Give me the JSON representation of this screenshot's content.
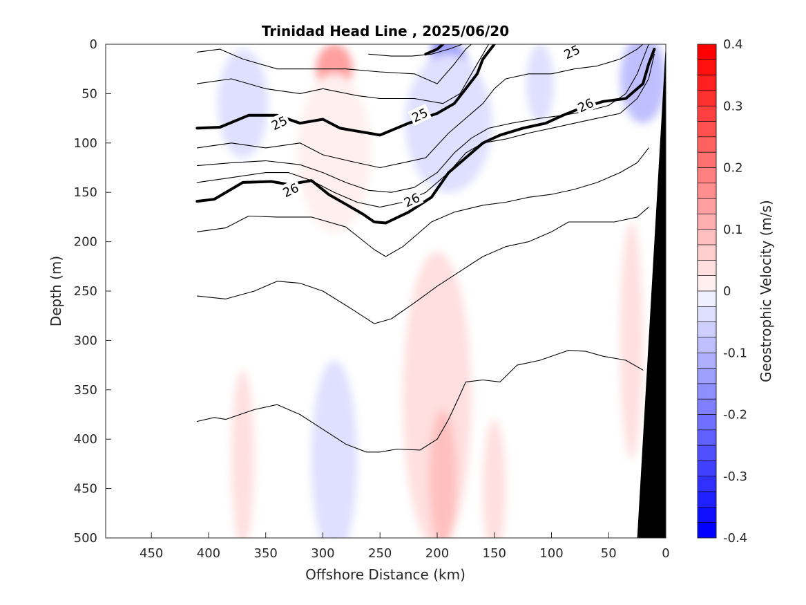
{
  "chart_data": {
    "type": "contour",
    "title": "Trinidad Head Line , 2025/06/20",
    "xlabel": "Offshore Distance (km)",
    "ylabel": "Depth (m)",
    "xlim": [
      490,
      0
    ],
    "ylim": [
      0,
      500
    ],
    "x_reversed": true,
    "y_reversed": true,
    "xticks": [
      450,
      400,
      350,
      300,
      250,
      200,
      150,
      100,
      50,
      0
    ],
    "yticks": [
      0,
      50,
      100,
      150,
      200,
      250,
      300,
      350,
      400,
      450,
      500
    ],
    "colorbar": {
      "label": "Geostrophic Velocity (m/s)",
      "range": [
        -0.4,
        0.4
      ],
      "step": 0.025,
      "ticks": [
        0.4,
        0.3,
        0.2,
        0.1,
        0,
        -0.1,
        -0.2,
        -0.3,
        -0.4
      ],
      "positive_color": "#ff0000",
      "negative_color": "#0000ff"
    },
    "velocity_patches": [
      {
        "x": 290,
        "z": 25,
        "rx": 16,
        "rz": 25,
        "v": 0.14
      },
      {
        "x": 290,
        "z": 90,
        "rx": 26,
        "rz": 55,
        "v": 0.06
      },
      {
        "x": 290,
        "z": 110,
        "rx": 32,
        "rz": 80,
        "v": 0.025
      },
      {
        "x": 195,
        "z": 15,
        "rx": 10,
        "rz": 25,
        "v": -0.32
      },
      {
        "x": 190,
        "z": 50,
        "rx": 22,
        "rz": 55,
        "v": -0.15
      },
      {
        "x": 190,
        "z": 80,
        "rx": 38,
        "rz": 70,
        "v": -0.05
      },
      {
        "x": 370,
        "z": 60,
        "rx": 22,
        "rz": 55,
        "v": -0.04
      },
      {
        "x": 110,
        "z": 40,
        "rx": 12,
        "rz": 40,
        "v": -0.05
      },
      {
        "x": 20,
        "z": 35,
        "rx": 20,
        "rz": 45,
        "v": -0.08
      },
      {
        "x": 200,
        "z": 360,
        "rx": 30,
        "rz": 150,
        "v": 0.03
      },
      {
        "x": 195,
        "z": 440,
        "rx": 12,
        "rz": 70,
        "v": 0.08
      },
      {
        "x": 290,
        "z": 420,
        "rx": 20,
        "rz": 100,
        "v": -0.04
      },
      {
        "x": 150,
        "z": 450,
        "rx": 10,
        "rz": 70,
        "v": 0.04
      },
      {
        "x": 370,
        "z": 420,
        "rx": 10,
        "rz": 90,
        "v": 0.03
      },
      {
        "x": 30,
        "z": 300,
        "rx": 10,
        "rz": 120,
        "v": 0.03
      }
    ],
    "density_contours": [
      {
        "level": 24.5,
        "bold": false,
        "label": "",
        "points": [
          [
            178,
            0
          ],
          [
            190,
            5
          ],
          [
            205,
            10
          ],
          [
            222,
            12
          ],
          [
            240,
            12
          ],
          [
            260,
            10
          ]
        ]
      },
      {
        "level": 25,
        "bold": true,
        "label": "25",
        "points": [
          [
            195,
            0
          ],
          [
            200,
            5
          ],
          [
            210,
            10
          ]
        ]
      },
      {
        "level": 24.75,
        "bold": false,
        "label": "",
        "points": [
          [
            410,
            8
          ],
          [
            390,
            5
          ],
          [
            370,
            15
          ],
          [
            340,
            25
          ],
          [
            310,
            25
          ],
          [
            280,
            25
          ],
          [
            250,
            28
          ],
          [
            220,
            30
          ],
          [
            200,
            40
          ],
          [
            185,
            20
          ],
          [
            175,
            5
          ],
          [
            170,
            0
          ]
        ]
      },
      {
        "level": 24.9,
        "bold": false,
        "label": "",
        "points": [
          [
            410,
            40
          ],
          [
            380,
            35
          ],
          [
            350,
            45
          ],
          [
            320,
            50
          ],
          [
            300,
            45
          ],
          [
            270,
            52
          ],
          [
            250,
            55
          ],
          [
            220,
            55
          ],
          [
            195,
            60
          ],
          [
            180,
            50
          ],
          [
            170,
            30
          ],
          [
            160,
            10
          ],
          [
            155,
            0
          ]
        ]
      },
      {
        "level": 25,
        "bold": true,
        "label": "25",
        "points": [
          [
            410,
            85
          ],
          [
            390,
            84
          ],
          [
            365,
            72
          ],
          [
            340,
            72
          ],
          [
            320,
            80
          ],
          [
            300,
            76
          ],
          [
            285,
            85
          ],
          [
            270,
            88
          ],
          [
            250,
            92
          ],
          [
            225,
            80
          ],
          [
            200,
            70
          ],
          [
            185,
            60
          ],
          [
            175,
            45
          ],
          [
            165,
            30
          ],
          [
            160,
            15
          ],
          [
            150,
            0
          ]
        ]
      },
      {
        "level": 25.25,
        "bold": false,
        "label": "",
        "points": [
          [
            410,
            105
          ],
          [
            380,
            100
          ],
          [
            350,
            105
          ],
          [
            320,
            100
          ],
          [
            300,
            112
          ],
          [
            270,
            120
          ],
          [
            250,
            125
          ],
          [
            230,
            120
          ],
          [
            210,
            115
          ],
          [
            190,
            90
          ],
          [
            175,
            75
          ],
          [
            160,
            60
          ],
          [
            150,
            45
          ],
          [
            140,
            35
          ],
          [
            120,
            30
          ],
          [
            100,
            30
          ],
          [
            80,
            25
          ],
          [
            60,
            22
          ],
          [
            40,
            15
          ],
          [
            25,
            5
          ],
          [
            20,
            0
          ]
        ]
      },
      {
        "level": 25.5,
        "bold": false,
        "label": "",
        "points": [
          [
            410,
            123
          ],
          [
            380,
            120
          ],
          [
            350,
            118
          ],
          [
            320,
            122
          ],
          [
            300,
            130
          ],
          [
            280,
            140
          ],
          [
            260,
            148
          ],
          [
            240,
            150
          ],
          [
            220,
            145
          ],
          [
            200,
            130
          ],
          [
            185,
            110
          ],
          [
            170,
            95
          ],
          [
            155,
            85
          ],
          [
            135,
            80
          ],
          [
            110,
            75
          ],
          [
            90,
            72
          ],
          [
            70,
            68
          ],
          [
            50,
            62
          ],
          [
            35,
            50
          ],
          [
            25,
            30
          ],
          [
            20,
            15
          ],
          [
            15,
            0
          ]
        ]
      },
      {
        "level": 25.75,
        "bold": false,
        "label": "",
        "points": [
          [
            410,
            140
          ],
          [
            380,
            135
          ],
          [
            350,
            130
          ],
          [
            330,
            130
          ],
          [
            310,
            138
          ],
          [
            290,
            150
          ],
          [
            270,
            160
          ],
          [
            250,
            165
          ],
          [
            230,
            160
          ],
          [
            210,
            150
          ],
          [
            190,
            130
          ],
          [
            175,
            110
          ],
          [
            160,
            100
          ],
          [
            140,
            96
          ],
          [
            120,
            90
          ],
          [
            100,
            85
          ],
          [
            80,
            80
          ],
          [
            60,
            75
          ],
          [
            40,
            70
          ],
          [
            25,
            55
          ],
          [
            15,
            35
          ],
          [
            10,
            10
          ]
        ]
      },
      {
        "level": 26,
        "bold": true,
        "label": "26",
        "points": [
          [
            410,
            159
          ],
          [
            395,
            157
          ],
          [
            370,
            140
          ],
          [
            345,
            139
          ],
          [
            330,
            142
          ],
          [
            310,
            138
          ],
          [
            295,
            152
          ],
          [
            280,
            162
          ],
          [
            265,
            172
          ],
          [
            255,
            180
          ],
          [
            245,
            181
          ],
          [
            225,
            170
          ],
          [
            205,
            155
          ],
          [
            190,
            130
          ],
          [
            175,
            115
          ],
          [
            160,
            100
          ],
          [
            145,
            92
          ],
          [
            125,
            85
          ],
          [
            105,
            80
          ],
          [
            90,
            72
          ],
          [
            75,
            65
          ],
          [
            55,
            58
          ],
          [
            35,
            55
          ],
          [
            20,
            40
          ],
          [
            15,
            20
          ],
          [
            10,
            5
          ]
        ]
      },
      {
        "level": 26.25,
        "bold": false,
        "label": "",
        "points": [
          [
            410,
            190
          ],
          [
            385,
            186
          ],
          [
            365,
            174
          ],
          [
            340,
            175
          ],
          [
            310,
            175
          ],
          [
            280,
            185
          ],
          [
            255,
            208
          ],
          [
            245,
            215
          ],
          [
            230,
            205
          ],
          [
            220,
            195
          ],
          [
            205,
            180
          ],
          [
            185,
            170
          ],
          [
            160,
            163
          ],
          [
            140,
            160
          ],
          [
            120,
            155
          ],
          [
            100,
            152
          ],
          [
            80,
            147
          ],
          [
            60,
            140
          ],
          [
            40,
            130
          ],
          [
            25,
            120
          ],
          [
            15,
            105
          ]
        ]
      },
      {
        "level": 26.5,
        "bold": false,
        "label": "",
        "points": [
          [
            410,
            255
          ],
          [
            385,
            258
          ],
          [
            360,
            250
          ],
          [
            340,
            240
          ],
          [
            320,
            242
          ],
          [
            300,
            250
          ],
          [
            275,
            268
          ],
          [
            255,
            283
          ],
          [
            240,
            278
          ],
          [
            220,
            262
          ],
          [
            200,
            245
          ],
          [
            180,
            230
          ],
          [
            160,
            215
          ],
          [
            140,
            205
          ],
          [
            120,
            200
          ],
          [
            100,
            190
          ],
          [
            85,
            180
          ],
          [
            65,
            180
          ],
          [
            45,
            180
          ],
          [
            25,
            175
          ],
          [
            15,
            165
          ]
        ]
      },
      {
        "level": 26.75,
        "bold": false,
        "label": "",
        "points": [
          [
            410,
            382
          ],
          [
            395,
            378
          ],
          [
            385,
            380
          ],
          [
            360,
            370
          ],
          [
            340,
            365
          ],
          [
            320,
            375
          ],
          [
            300,
            390
          ],
          [
            280,
            405
          ],
          [
            262,
            413
          ],
          [
            250,
            413
          ],
          [
            235,
            410
          ],
          [
            215,
            411
          ],
          [
            200,
            400
          ],
          [
            190,
            380
          ],
          [
            182,
            360
          ],
          [
            175,
            342
          ],
          [
            160,
            340
          ],
          [
            145,
            342
          ],
          [
            130,
            325
          ],
          [
            110,
            320
          ],
          [
            95,
            314
          ],
          [
            85,
            310
          ],
          [
            70,
            311
          ],
          [
            55,
            316
          ],
          [
            35,
            320
          ],
          [
            20,
            330
          ]
        ]
      }
    ],
    "contour_labels": [
      {
        "text": "25",
        "x": 338,
        "z": 80
      },
      {
        "text": "25",
        "x": 215,
        "z": 72
      },
      {
        "text": "25",
        "x": 82,
        "z": 8
      },
      {
        "text": "26",
        "x": 328,
        "z": 148
      },
      {
        "text": "26",
        "x": 222,
        "z": 158
      },
      {
        "text": "26",
        "x": 70,
        "z": 62
      }
    ],
    "bathymetry": {
      "color": "#000000",
      "points": [
        [
          0,
          0
        ],
        [
          25,
          500
        ],
        [
          0,
          500
        ]
      ]
    }
  }
}
